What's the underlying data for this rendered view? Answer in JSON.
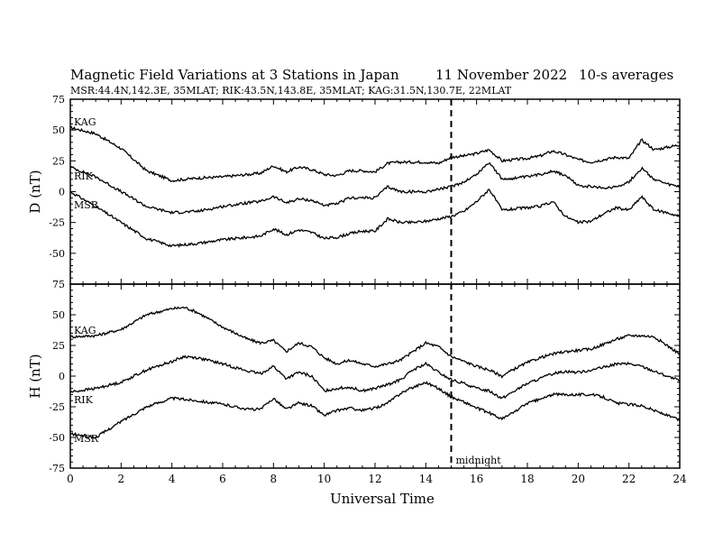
{
  "header": {
    "title": "Magnetic Field Variations at 3 Stations in Japan",
    "date": "11 November 2022",
    "averaging": "10-s averages",
    "stations": "MSR:44.4N,142.3E, 35MLAT;  RIK:43.5N,143.8E, 35MLAT;  KAG:31.5N,130.7E, 22MLAT"
  },
  "chart_data": [
    {
      "type": "line",
      "ylabel": "D (nT)",
      "ylim": [
        -75,
        75
      ],
      "yticks": [
        -75,
        -50,
        -25,
        0,
        25,
        50,
        75
      ],
      "xlim": [
        0,
        24
      ],
      "xticks": [
        0,
        2,
        4,
        6,
        8,
        10,
        12,
        14,
        16,
        18,
        20,
        22,
        24
      ],
      "x": [
        0,
        1,
        2,
        3,
        4,
        5,
        6,
        7,
        7.5,
        8,
        8.5,
        9,
        9.5,
        10,
        10.5,
        11,
        11.5,
        12,
        12.5,
        13,
        13.5,
        14,
        14.5,
        15,
        15.5,
        16,
        16.5,
        17,
        17.5,
        18,
        18.5,
        19,
        19.5,
        20,
        20.5,
        21,
        21.5,
        22,
        22.5,
        23,
        23.5,
        24
      ],
      "series": [
        {
          "name": "KAG",
          "values": [
            52,
            47,
            35,
            17,
            9,
            11,
            12,
            14,
            15,
            21,
            16,
            20,
            18,
            14,
            13,
            17,
            17,
            16,
            23,
            24,
            24,
            24,
            23,
            28,
            29,
            31,
            34,
            25,
            26,
            27,
            29,
            33,
            30,
            26,
            24,
            26,
            28,
            27,
            42,
            34,
            36,
            38
          ]
        },
        {
          "name": "RIK",
          "values": [
            20,
            12,
            0,
            -12,
            -17,
            -16,
            -12,
            -9,
            -8,
            -4,
            -9,
            -6,
            -7,
            -11,
            -10,
            -5,
            -5,
            -5,
            4,
            0,
            0,
            0,
            2,
            4,
            8,
            14,
            24,
            10,
            11,
            12,
            14,
            17,
            13,
            5,
            4,
            3,
            4,
            8,
            19,
            10,
            6,
            4
          ]
        },
        {
          "name": "MSR",
          "values": [
            0,
            -12,
            -25,
            -38,
            -44,
            -42,
            -39,
            -37,
            -36,
            -30,
            -35,
            -31,
            -33,
            -38,
            -37,
            -34,
            -32,
            -32,
            -22,
            -25,
            -25,
            -24,
            -22,
            -20,
            -16,
            -8,
            2,
            -15,
            -14,
            -13,
            -12,
            -8,
            -20,
            -25,
            -24,
            -18,
            -13,
            -15,
            -4,
            -15,
            -17,
            -20
          ]
        }
      ]
    },
    {
      "type": "line",
      "ylabel": "H (nT)",
      "ylim": [
        -75,
        75
      ],
      "yticks": [
        -75,
        -50,
        -25,
        0,
        25,
        50,
        75
      ],
      "xlim": [
        0,
        24
      ],
      "xticks": [
        0,
        2,
        4,
        6,
        8,
        10,
        12,
        14,
        16,
        18,
        20,
        22,
        24
      ],
      "xlabel": "Universal Time",
      "x": [
        0,
        1,
        2,
        3,
        4,
        4.5,
        5,
        6,
        7,
        7.5,
        8,
        8.5,
        9,
        9.5,
        10,
        10.5,
        11,
        11.5,
        12,
        12.5,
        13,
        13.5,
        14,
        14.5,
        15,
        15.5,
        16,
        16.5,
        17,
        17.5,
        18,
        18.5,
        19,
        19.5,
        20,
        20.5,
        21,
        21.5,
        22,
        22.5,
        23,
        23.5,
        24
      ],
      "series": [
        {
          "name": "KAG",
          "values": [
            32,
            33,
            38,
            50,
            55,
            56,
            52,
            40,
            30,
            27,
            29,
            20,
            27,
            24,
            15,
            10,
            13,
            10,
            8,
            10,
            13,
            20,
            27,
            24,
            16,
            12,
            8,
            5,
            0,
            6,
            11,
            15,
            18,
            20,
            21,
            22,
            26,
            30,
            33,
            33,
            32,
            25,
            18
          ]
        },
        {
          "name": "RIK",
          "values": [
            -13,
            -10,
            -5,
            5,
            12,
            16,
            15,
            10,
            4,
            2,
            8,
            -2,
            3,
            0,
            -12,
            -10,
            -9,
            -12,
            -10,
            -7,
            -3,
            5,
            10,
            3,
            -3,
            -6,
            -10,
            -12,
            -18,
            -12,
            -6,
            -2,
            2,
            4,
            3,
            5,
            7,
            10,
            10,
            8,
            4,
            0,
            -4
          ]
        },
        {
          "name": "MSR",
          "values": [
            -47,
            -50,
            -37,
            -25,
            -18,
            -19,
            -20,
            -23,
            -27,
            -27,
            -18,
            -27,
            -22,
            -24,
            -32,
            -28,
            -26,
            -28,
            -26,
            -22,
            -14,
            -9,
            -5,
            -10,
            -17,
            -21,
            -26,
            -30,
            -35,
            -29,
            -22,
            -19,
            -15,
            -15,
            -15,
            -15,
            -17,
            -22,
            -23,
            -24,
            -28,
            -32,
            -36
          ]
        }
      ]
    }
  ],
  "marker": {
    "x": 15,
    "label": "midnight"
  }
}
